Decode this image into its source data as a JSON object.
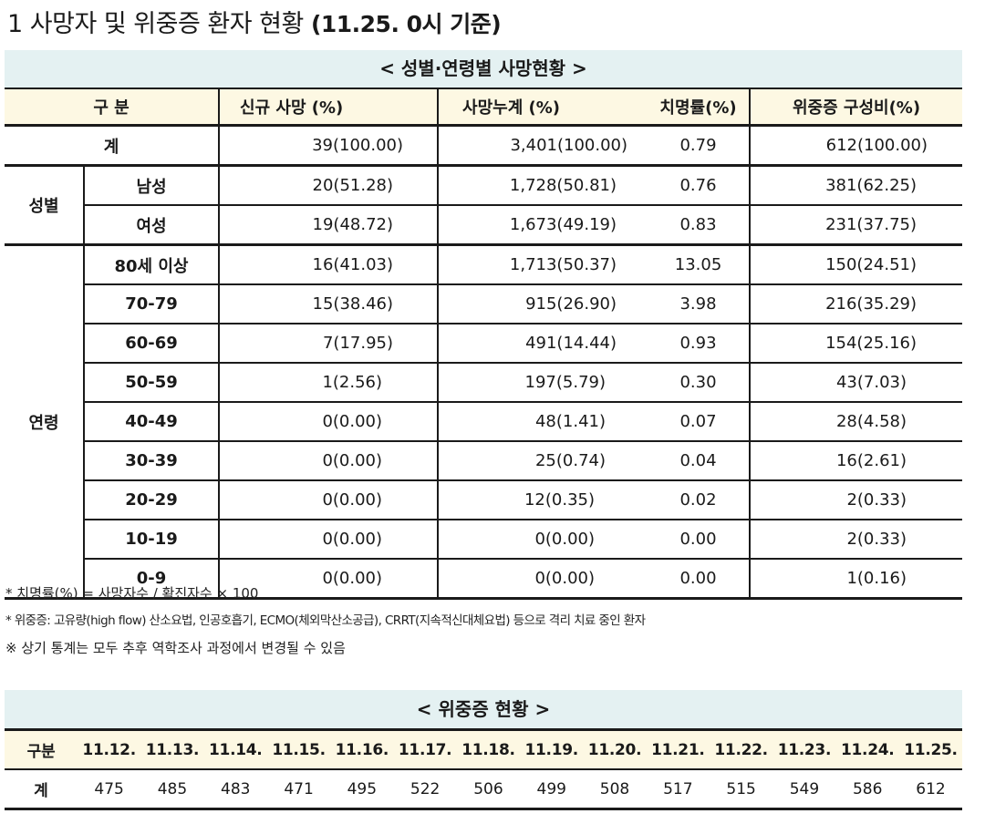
{
  "heading": {
    "number": "1",
    "title": "사망자 및 위중증 환자 현황",
    "date": "(11.25. 0시 기준)"
  },
  "table1": {
    "caption": "< 성별·연령별 사망현황 >",
    "header": {
      "category": "구 분",
      "new_deaths": "신규 사망 (%)",
      "cumulative": "사망누계 (%)",
      "fatality": "치명률(%)",
      "severe": "위중증 구성비(%)"
    },
    "total": {
      "label": "계",
      "new_deaths": "39(100.00)",
      "cumulative": "3,401(100.00)",
      "fatality": "0.79",
      "severe": "612(100.00)"
    },
    "sex_group_label": "성별",
    "sex_rows": [
      {
        "label": "남성",
        "new_deaths": "20(51.28)",
        "cumulative": "1,728(50.81)",
        "fatality": "0.76",
        "severe": "381(62.25)"
      },
      {
        "label": "여성",
        "new_deaths": "19(48.72)",
        "cumulative": "1,673(49.19)",
        "fatality": "0.83",
        "severe": "231(37.75)"
      }
    ],
    "age_group_label": "연령",
    "age_rows": [
      {
        "label": "80세 이상",
        "new_deaths": "16(41.03)",
        "cumulative": "1,713(50.37)",
        "fatality": "13.05",
        "severe": "150(24.51)"
      },
      {
        "label": "70-79",
        "new_deaths": "15(38.46)",
        "cumulative": "915(26.90)",
        "fatality": "3.98",
        "severe": "216(35.29)"
      },
      {
        "label": "60-69",
        "new_deaths": "7(17.95)",
        "cumulative": "491(14.44)",
        "fatality": "0.93",
        "severe": "154(25.16)"
      },
      {
        "label": "50-59",
        "new_deaths": "1(2.56)",
        "cumulative": "197(5.79)",
        "fatality": "0.30",
        "severe": "43(7.03)"
      },
      {
        "label": "40-49",
        "new_deaths": "0(0.00)",
        "cumulative": "48(1.41)",
        "fatality": "0.07",
        "severe": "28(4.58)"
      },
      {
        "label": "30-39",
        "new_deaths": "0(0.00)",
        "cumulative": "25(0.74)",
        "fatality": "0.04",
        "severe": "16(2.61)"
      },
      {
        "label": "20-29",
        "new_deaths": "0(0.00)",
        "cumulative": "12(0.35)",
        "fatality": "0.02",
        "severe": "2(0.33)"
      },
      {
        "label": "10-19",
        "new_deaths": "0(0.00)",
        "cumulative": "0(0.00)",
        "fatality": "0.00",
        "severe": "2(0.33)"
      },
      {
        "label": "0-9",
        "new_deaths": "0(0.00)",
        "cumulative": "0(0.00)",
        "fatality": "0.00",
        "severe": "1(0.16)"
      }
    ]
  },
  "notes": [
    "* 치명률(%) = 사망자수 / 확진자수 × 100",
    "* 위중증: 고유량(high flow) 산소요법, 인공호흡기, ECMO(체외막산소공급), CRRT(지속적신대체요법) 등으로 격리 치료 중인 환자",
    "※ 상기 통계는 모두 추후 역학조사 과정에서 변경될 수 있음"
  ],
  "table2": {
    "caption": "< 위중증 현황 >",
    "row_header": "구분",
    "dates": [
      "11.12.",
      "11.13.",
      "11.14.",
      "11.15.",
      "11.16.",
      "11.17.",
      "11.18.",
      "11.19.",
      "11.20.",
      "11.21.",
      "11.22.",
      "11.23.",
      "11.24.",
      "11.25."
    ],
    "total_label": "계",
    "totals": [
      "475",
      "485",
      "483",
      "471",
      "495",
      "522",
      "506",
      "499",
      "508",
      "517",
      "515",
      "549",
      "586",
      "612"
    ]
  }
}
